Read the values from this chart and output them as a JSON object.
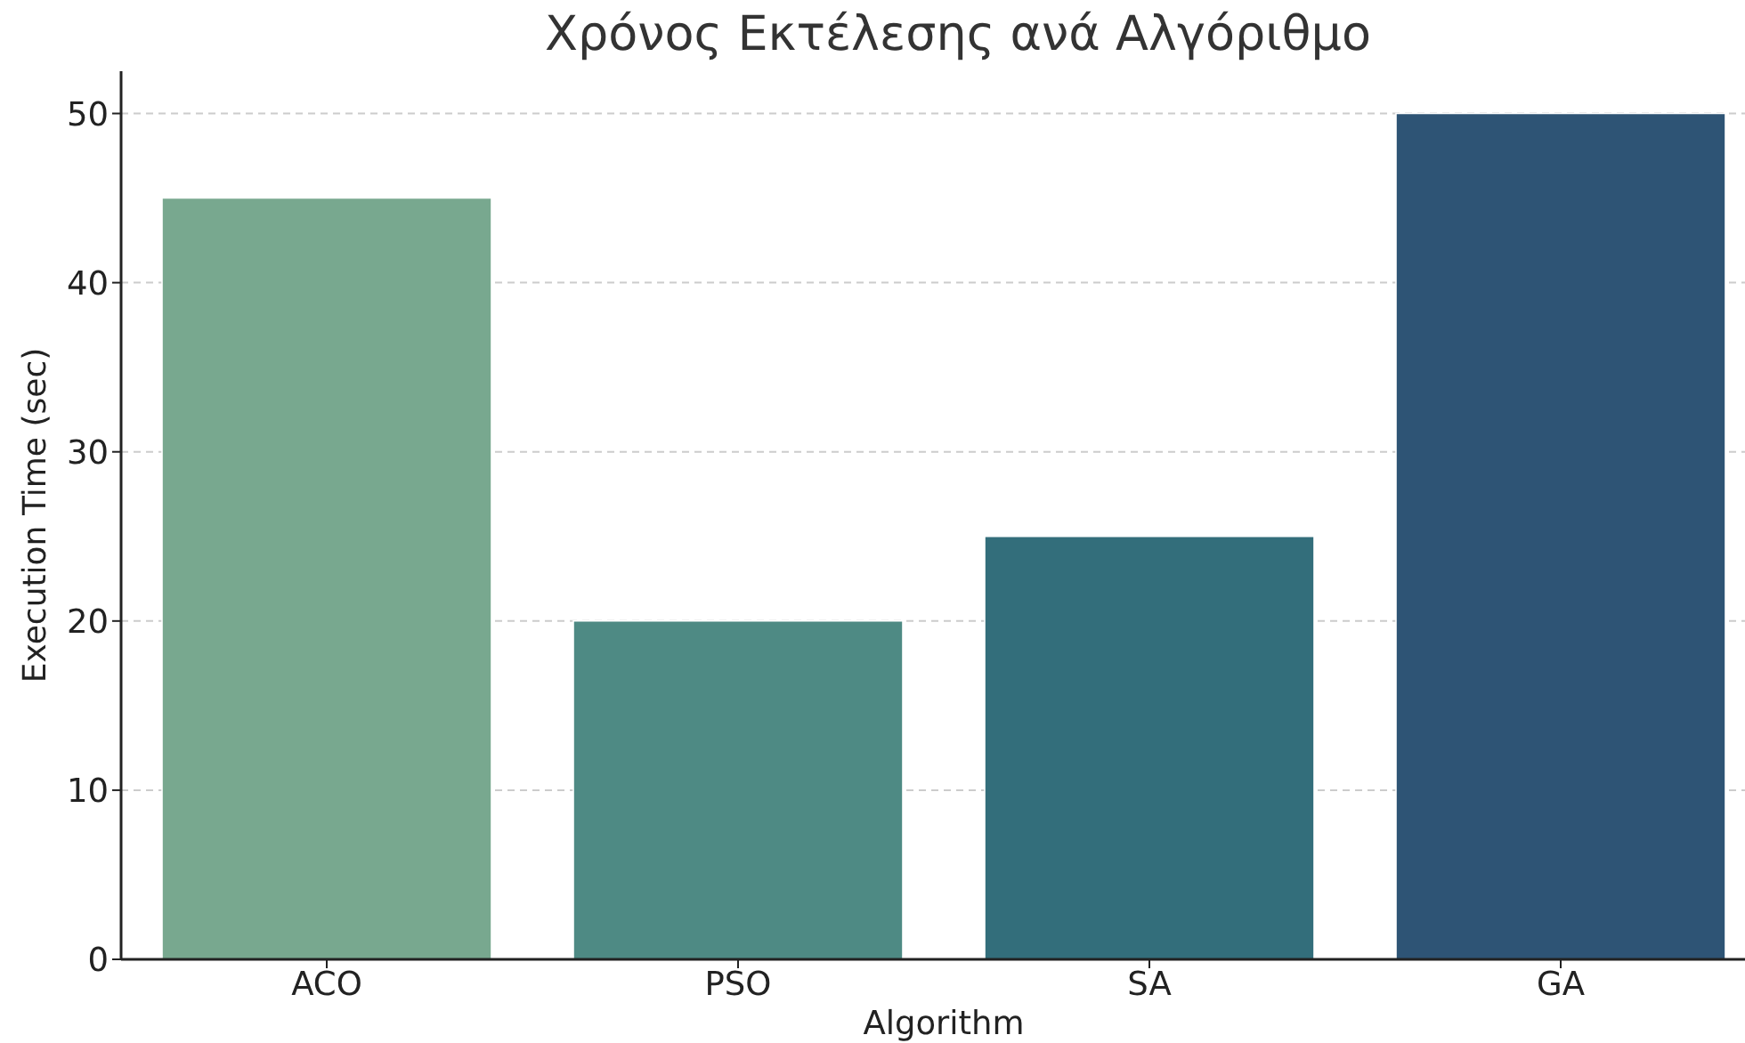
{
  "chart_data": {
    "type": "bar",
    "title": "Χρόνος Εκτέλεσης ανά Αλγόριθμο",
    "xlabel": "Algorithm",
    "ylabel": "Execution Time (sec)",
    "categories": [
      "ACO",
      "PSO",
      "SA",
      "GA"
    ],
    "values": [
      45,
      20,
      25,
      50
    ],
    "colors": [
      "#78a88f",
      "#4e8a84",
      "#336e7b",
      "#2e5475"
    ],
    "ylim": [
      0,
      52.5
    ],
    "yticks": [
      0,
      10,
      20,
      30,
      40,
      50
    ],
    "grid": "y"
  }
}
